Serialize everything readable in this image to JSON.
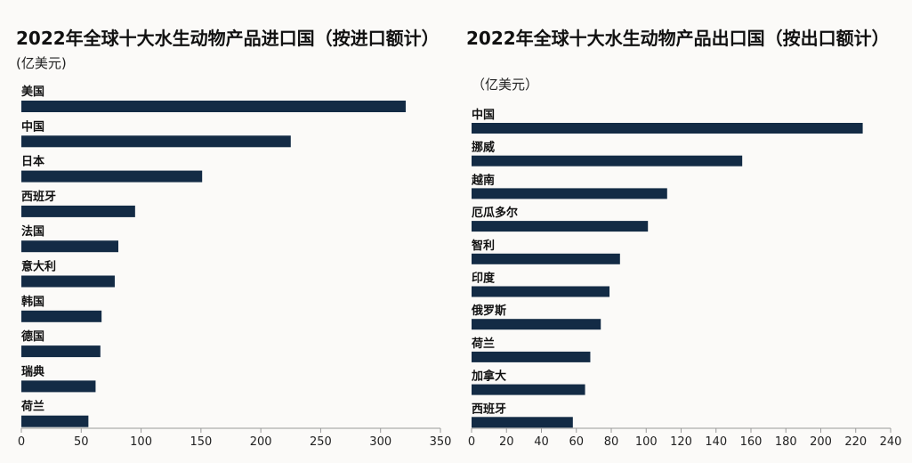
{
  "chart_data": [
    {
      "type": "bar",
      "orientation": "horizontal",
      "title": "2022年全球十大水生动物产品进口国（按进口额计）",
      "subtitle": "(亿美元)",
      "categories": [
        "美国",
        "中国",
        "日本",
        "西班牙",
        "法国",
        "意大利",
        "韩国",
        "德国",
        "瑞典",
        "荷兰"
      ],
      "values": [
        321,
        225,
        151,
        95,
        81,
        78,
        67,
        66,
        62,
        56
      ],
      "xlim": [
        0,
        350
      ],
      "xticks": [
        0,
        50,
        100,
        150,
        200,
        250,
        300,
        350
      ],
      "color": "#132b45",
      "grid": false
    },
    {
      "type": "bar",
      "orientation": "horizontal",
      "title": "2022年全球十大水生动物产品出口国（按出口额计）",
      "subtitle": "（亿美元）",
      "categories": [
        "中国",
        "挪威",
        "越南",
        "厄瓜多尔",
        "智利",
        "印度",
        "俄罗斯",
        "荷兰",
        "加拿大",
        "西班牙"
      ],
      "values": [
        224,
        155,
        112,
        101,
        85,
        79,
        74,
        68,
        65,
        58
      ],
      "xlim": [
        0,
        240
      ],
      "xticks": [
        0,
        20,
        40,
        60,
        80,
        100,
        120,
        140,
        160,
        180,
        200,
        220,
        240
      ],
      "color": "#132b45",
      "grid": false
    }
  ]
}
